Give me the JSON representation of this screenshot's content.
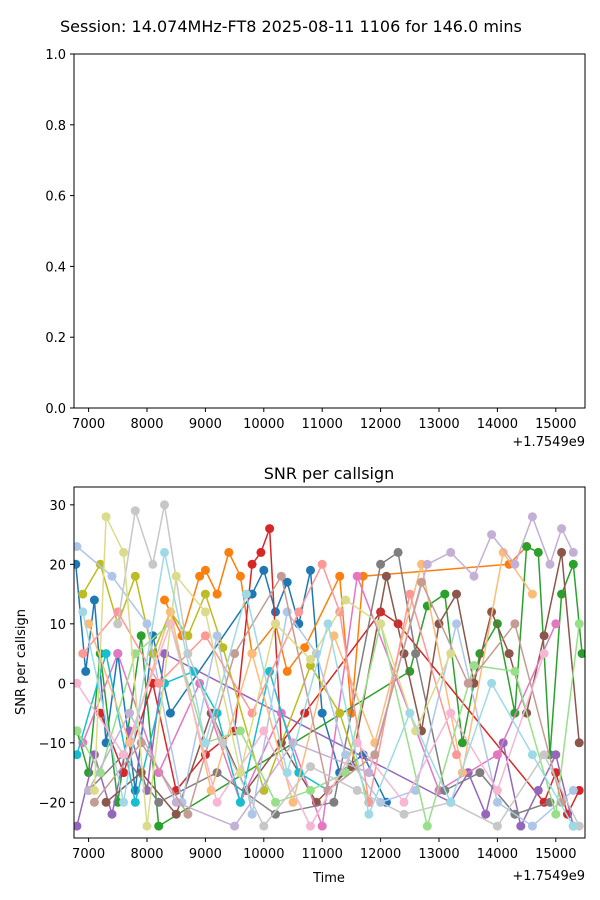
{
  "figure": {
    "suptitle": "Session: 14.074MHz-FT8 2025-08-11 1106 for 146.0 mins"
  },
  "chart_data": [
    {
      "type": "line",
      "title": "",
      "xlabel": "",
      "ylabel": "",
      "xlim": [
        6750,
        15500
      ],
      "ylim": [
        0,
        1
      ],
      "x_ticks": [
        "7000",
        "8000",
        "9000",
        "10000",
        "11000",
        "12000",
        "13000",
        "14000",
        "15000"
      ],
      "y_ticks": [
        "0.0",
        "0.2",
        "0.4",
        "0.6",
        "0.8",
        "1.0"
      ],
      "x_offset_label": "+1.7549e9",
      "series": []
    },
    {
      "type": "line",
      "title": "SNR per callsign",
      "xlabel": "Time",
      "ylabel": "SNR per callsign",
      "xlim": [
        6750,
        15500
      ],
      "ylim": [
        -26,
        33
      ],
      "x_ticks": [
        "7000",
        "8000",
        "9000",
        "10000",
        "11000",
        "12000",
        "13000",
        "14000",
        "15000"
      ],
      "y_ticks": [
        "−20",
        "−10",
        "0",
        "10",
        "20",
        "30"
      ],
      "x_offset_label": "+1.7549e9",
      "markers": "circle",
      "series": [
        {
          "color": "#1f77b4",
          "x": [
            6780,
            6950,
            7100,
            7300,
            7500,
            7800,
            8100,
            8400,
            9800,
            10000,
            10200,
            10400,
            10600,
            10800,
            11000,
            11300,
            11700,
            12100
          ],
          "y": [
            20,
            2,
            14,
            -10,
            5,
            -18,
            8,
            -5,
            15,
            19,
            12,
            17,
            10,
            19,
            -5,
            -15,
            -12,
            -20
          ]
        },
        {
          "color": "#ff7f0e",
          "x": [
            8300,
            8600,
            8900,
            9000,
            9200,
            9400,
            9600,
            9800,
            10200,
            10400,
            10700,
            11300,
            11500,
            11700,
            14200,
            14500
          ],
          "y": [
            14,
            8,
            18,
            19,
            15,
            22,
            18,
            5,
            10,
            2,
            6,
            18,
            -5,
            18,
            20,
            23
          ]
        },
        {
          "color": "#2ca02c",
          "x": [
            6800,
            7000,
            7200,
            7500,
            7900,
            8200,
            12500,
            12800,
            13100,
            13400,
            13700,
            14000,
            14300,
            14500,
            14700,
            14900,
            15100,
            15300,
            15450
          ],
          "y": [
            -8,
            -15,
            5,
            -20,
            8,
            -24,
            2,
            13,
            15,
            -10,
            5,
            10,
            -5,
            23,
            22,
            -12,
            15,
            20,
            5
          ]
        },
        {
          "color": "#d62728",
          "x": [
            7200,
            7600,
            8100,
            8500,
            9000,
            9500,
            9800,
            9950,
            10100,
            10300,
            10700,
            12000,
            12300,
            14800,
            15000,
            15200,
            15400
          ],
          "y": [
            -5,
            -15,
            0,
            -18,
            -12,
            -8,
            20,
            22,
            26,
            -10,
            -5,
            12,
            10,
            -20,
            -15,
            -22,
            -18
          ]
        },
        {
          "color": "#9467bd",
          "x": [
            6800,
            7100,
            7400,
            7700,
            8000,
            8300,
            13200,
            13500,
            13800,
            14100,
            14400,
            14700,
            15000,
            15300
          ],
          "y": [
            -24,
            -12,
            -22,
            -8,
            -18,
            5,
            -20,
            -15,
            -22,
            -10,
            -24,
            -18,
            -12,
            -24
          ]
        },
        {
          "color": "#8c564b",
          "x": [
            7300,
            7900,
            8500,
            9100,
            9700,
            10300,
            10900,
            11500,
            12100,
            12400,
            12700,
            13000,
            13300,
            13600,
            13900,
            14200,
            14500,
            14800,
            15100,
            15400
          ],
          "y": [
            -20,
            -15,
            -22,
            -5,
            -18,
            -10,
            -20,
            -14,
            18,
            5,
            -8,
            10,
            15,
            0,
            12,
            5,
            -5,
            8,
            22,
            -10
          ]
        },
        {
          "color": "#e377c2",
          "x": [
            6900,
            7500,
            8200,
            8900,
            9600,
            10300,
            11000,
            11600,
            13000,
            14000,
            15000
          ],
          "y": [
            -10,
            5,
            -15,
            0,
            -20,
            -5,
            -24,
            18,
            -18,
            -12,
            10
          ]
        },
        {
          "color": "#7f7f7f",
          "x": [
            7000,
            7600,
            8200,
            9200,
            10200,
            11200,
            12000,
            12300,
            12600,
            13100,
            13700,
            14300,
            14900
          ],
          "y": [
            -18,
            -12,
            -20,
            -15,
            -22,
            -20,
            20,
            22,
            5,
            -18,
            -15,
            -22,
            -20
          ]
        },
        {
          "color": "#bcbd22",
          "x": [
            6900,
            7200,
            7500,
            7800,
            8100,
            8400,
            8700,
            9000,
            9300,
            10000,
            10800,
            11300,
            11800
          ],
          "y": [
            15,
            20,
            10,
            18,
            5,
            12,
            8,
            15,
            6,
            -18,
            3,
            -5,
            -20
          ]
        },
        {
          "color": "#17becf",
          "x": [
            6800,
            7300,
            7800,
            8300,
            8800,
            9200,
            9600,
            10100,
            10600,
            11100
          ],
          "y": [
            -12,
            5,
            -20,
            0,
            2,
            -5,
            -20,
            2,
            -15,
            -18
          ]
        },
        {
          "color": "#aec7e8",
          "x": [
            6800,
            7400,
            8000,
            8600,
            9200,
            9800,
            10400,
            10900,
            11400,
            12000,
            12600,
            13300,
            14000,
            14600,
            15300
          ],
          "y": [
            23,
            18,
            10,
            -20,
            8,
            -22,
            12,
            5,
            -12,
            -20,
            -18,
            10,
            -20,
            -24,
            -18
          ]
        },
        {
          "color": "#ffbb78",
          "x": [
            7000,
            7700,
            8400,
            9100,
            9800,
            10500,
            11200,
            11900,
            12700,
            13400,
            14100,
            14600
          ],
          "y": [
            10,
            -10,
            12,
            -18,
            5,
            -20,
            8,
            -10,
            20,
            -15,
            22,
            15
          ]
        },
        {
          "color": "#98df8a",
          "x": [
            6800,
            7200,
            7800,
            8400,
            9000,
            9600,
            10200,
            10800,
            11400,
            12000,
            12800,
            13600,
            14300,
            15000,
            15400
          ],
          "y": [
            -8,
            -15,
            5,
            10,
            -10,
            -8,
            -20,
            -18,
            -15,
            10,
            -24,
            3,
            2,
            -22,
            10
          ]
        },
        {
          "color": "#ff9896",
          "x": [
            6900,
            7500,
            8200,
            9000,
            9800,
            10600,
            11000,
            11300,
            11800,
            12500,
            13300
          ],
          "y": [
            5,
            12,
            0,
            8,
            -5,
            12,
            20,
            12,
            -20,
            15,
            -12
          ]
        },
        {
          "color": "#c5b0d5",
          "x": [
            7000,
            7700,
            8500,
            9500,
            10500,
            11800,
            12800,
            13200,
            13600,
            13900,
            14300,
            14600,
            14900,
            15100,
            15300
          ],
          "y": [
            -18,
            -5,
            -20,
            -24,
            -10,
            -15,
            20,
            22,
            18,
            25,
            20,
            28,
            20,
            26,
            22
          ]
        },
        {
          "color": "#c49c94",
          "x": [
            7100,
            7900,
            8700,
            9500,
            10300,
            11100,
            11900,
            12700,
            13500,
            14300,
            15100
          ],
          "y": [
            -20,
            -10,
            -22,
            5,
            18,
            -18,
            -12,
            17,
            0,
            10,
            -20
          ]
        },
        {
          "color": "#f7b6d2",
          "x": [
            6800,
            7600,
            8400,
            9200,
            10000,
            10800,
            11600,
            12400,
            13200,
            14000,
            14800
          ],
          "y": [
            0,
            -12,
            10,
            -20,
            -8,
            -24,
            -10,
            -20,
            -5,
            -18,
            5
          ]
        },
        {
          "color": "#c7c7c7",
          "x": [
            7500,
            7800,
            8100,
            8300,
            8700,
            9300,
            10000,
            10800,
            11600,
            12400,
            13200,
            14000,
            14800,
            15400
          ],
          "y": [
            10,
            29,
            20,
            30,
            5,
            -10,
            -24,
            -14,
            -18,
            -22,
            -20,
            -24,
            -12,
            -24
          ]
        },
        {
          "color": "#dbdb8d",
          "x": [
            7100,
            7300,
            7600,
            8000,
            8500,
            9000,
            9600,
            10200,
            10800,
            11400,
            12000,
            12600,
            13200
          ],
          "y": [
            -18,
            28,
            22,
            -24,
            18,
            12,
            -15,
            10,
            4,
            14,
            10,
            -8,
            5
          ]
        },
        {
          "color": "#9edae5",
          "x": [
            6900,
            7600,
            8300,
            9000,
            9700,
            10400,
            11100,
            11800,
            12500,
            13200,
            13900,
            14600,
            15300
          ],
          "y": [
            12,
            -20,
            22,
            -10,
            15,
            -15,
            10,
            -22,
            -5,
            -20,
            0,
            -12,
            -24
          ]
        }
      ]
    }
  ]
}
